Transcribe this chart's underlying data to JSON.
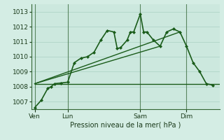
{
  "background_color": "#d4ede4",
  "plot_bg_color": "#cce8de",
  "grid_color": "#b0d4c8",
  "line_color": "#1a5c1a",
  "marker_color": "#1a5c1a",
  "spine_color": "#336633",
  "title": "Pression niveau de la mer( hPa )",
  "ylabel_ticks": [
    1007,
    1008,
    1009,
    1010,
    1011,
    1012,
    1013
  ],
  "ylim": [
    1006.5,
    1013.5
  ],
  "xtick_labels": [
    "Ven",
    "Lun",
    "Sam",
    "Dim"
  ],
  "xtick_positions": [
    0,
    10,
    32,
    46
  ],
  "xlim": [
    -1,
    56
  ],
  "series_main": [
    0,
    1006.6,
    2,
    1007.1,
    4,
    1007.9,
    5,
    1008.0,
    6,
    1008.2,
    8,
    1008.25,
    10,
    1008.3,
    12,
    1009.6,
    14,
    1009.9,
    16,
    1010.0,
    18,
    1010.3,
    20,
    1011.1,
    22,
    1011.75,
    24,
    1011.65,
    25,
    1010.55,
    26,
    1010.6,
    28,
    1011.1,
    29,
    1011.65,
    30,
    1011.65,
    32,
    1012.85,
    33,
    1011.65,
    34,
    1011.65,
    36,
    1011.1,
    38,
    1010.7,
    40,
    1011.65,
    42,
    1011.85,
    44,
    1011.65,
    46,
    1010.7,
    48,
    1009.6,
    50,
    1009.0,
    52,
    1008.2,
    54,
    1008.1
  ],
  "series_flat": [
    [
      0,
      1008.2,
      56,
      1008.2
    ]
  ],
  "series_diagonal": [
    [
      0,
      1008.2,
      38,
      1010.7
    ],
    [
      0,
      1008.2,
      44,
      1011.65
    ]
  ],
  "vlines": [
    0,
    10,
    32,
    46
  ]
}
